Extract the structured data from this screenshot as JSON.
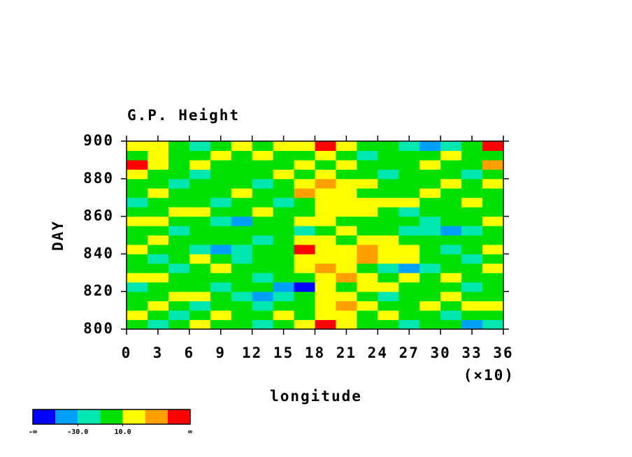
{
  "chart_data": {
    "type": "heatmap",
    "title": "G.P. Height",
    "x_label": "longitude",
    "x_multiplier": "(×10)",
    "y_label": "DAY",
    "xlim": [
      0,
      36
    ],
    "xticks": [
      0,
      3,
      6,
      9,
      12,
      15,
      18,
      21,
      24,
      27,
      30,
      33,
      36
    ],
    "ylim": [
      800,
      900
    ],
    "yticks": [
      800,
      820,
      840,
      860,
      880,
      900
    ],
    "z": [
      [
        5,
        -15,
        0,
        15,
        5,
        0,
        -15,
        5,
        20,
        55,
        20,
        5,
        0,
        -15,
        5,
        0,
        -35,
        -15
      ],
      [
        15,
        5,
        -15,
        0,
        20,
        5,
        0,
        15,
        5,
        20,
        15,
        5,
        20,
        0,
        5,
        -15,
        0,
        5
      ],
      [
        0,
        20,
        5,
        -15,
        5,
        0,
        -15,
        5,
        0,
        25,
        35,
        15,
        0,
        5,
        20,
        5,
        15,
        20
      ],
      [
        5,
        0,
        15,
        20,
        0,
        -15,
        -35,
        -15,
        5,
        15,
        20,
        0,
        -15,
        5,
        0,
        25,
        5,
        0
      ],
      [
        -15,
        5,
        0,
        5,
        -15,
        5,
        0,
        -35,
        -55,
        20,
        5,
        15,
        25,
        0,
        5,
        0,
        -15,
        5
      ],
      [
        20,
        15,
        5,
        0,
        5,
        0,
        -15,
        0,
        5,
        20,
        35,
        20,
        5,
        15,
        5,
        20,
        5,
        0
      ],
      [
        5,
        0,
        -15,
        5,
        20,
        5,
        0,
        5,
        15,
        35,
        20,
        5,
        -15,
        -35,
        -15,
        0,
        5,
        15
      ],
      [
        0,
        -15,
        5,
        15,
        0,
        -15,
        5,
        0,
        20,
        15,
        25,
        35,
        20,
        15,
        5,
        0,
        -15,
        5
      ],
      [
        15,
        5,
        0,
        -15,
        -35,
        -15,
        0,
        5,
        55,
        20,
        25,
        35,
        25,
        15,
        5,
        -15,
        5,
        20
      ],
      [
        5,
        20,
        5,
        0,
        5,
        0,
        -15,
        5,
        20,
        15,
        5,
        20,
        15,
        5,
        0,
        5,
        0,
        5
      ],
      [
        0,
        5,
        -15,
        5,
        0,
        5,
        0,
        0,
        -15,
        5,
        15,
        0,
        5,
        -15,
        -15,
        -35,
        -15,
        0
      ],
      [
        20,
        15,
        5,
        0,
        -15,
        -35,
        5,
        0,
        15,
        20,
        5,
        0,
        5,
        0,
        -15,
        5,
        5,
        20
      ],
      [
        5,
        0,
        15,
        20,
        5,
        0,
        15,
        5,
        5,
        20,
        25,
        15,
        5,
        -15,
        0,
        5,
        0,
        5
      ],
      [
        -15,
        5,
        0,
        5,
        -15,
        5,
        0,
        -15,
        5,
        15,
        20,
        25,
        20,
        15,
        5,
        0,
        15,
        5
      ],
      [
        0,
        15,
        5,
        0,
        5,
        20,
        5,
        0,
        35,
        25,
        20,
        5,
        0,
        5,
        20,
        5,
        0,
        0
      ],
      [
        5,
        0,
        -15,
        5,
        0,
        5,
        -15,
        5,
        20,
        35,
        20,
        15,
        5,
        0,
        5,
        15,
        5,
        20
      ],
      [
        20,
        5,
        0,
        -15,
        5,
        0,
        5,
        15,
        5,
        20,
        5,
        0,
        -15,
        5,
        0,
        5,
        -15,
        5
      ],
      [
        55,
        20,
        5,
        15,
        0,
        5,
        0,
        5,
        20,
        5,
        15,
        5,
        0,
        5,
        15,
        0,
        5,
        35
      ],
      [
        5,
        15,
        0,
        5,
        20,
        5,
        15,
        0,
        5,
        20,
        5,
        -15,
        5,
        0,
        5,
        20,
        0,
        5
      ],
      [
        15,
        20,
        5,
        -15,
        5,
        15,
        5,
        20,
        15,
        55,
        20,
        5,
        0,
        -15,
        -35,
        -15,
        5,
        55
      ]
    ],
    "colorbar": {
      "colors": [
        "#0000ff",
        "#00a0ff",
        "#00e8b0",
        "#00e000",
        "#ffff00",
        "#ffa000",
        "#ff0000"
      ],
      "levels": [
        -50,
        -30,
        -10,
        10,
        30,
        50
      ],
      "low_label": "-∞",
      "ticks": [
        {
          "value": -30,
          "label": "-30.0"
        },
        {
          "value": 10,
          "label": "10.0"
        }
      ],
      "high_label": "∞"
    }
  }
}
